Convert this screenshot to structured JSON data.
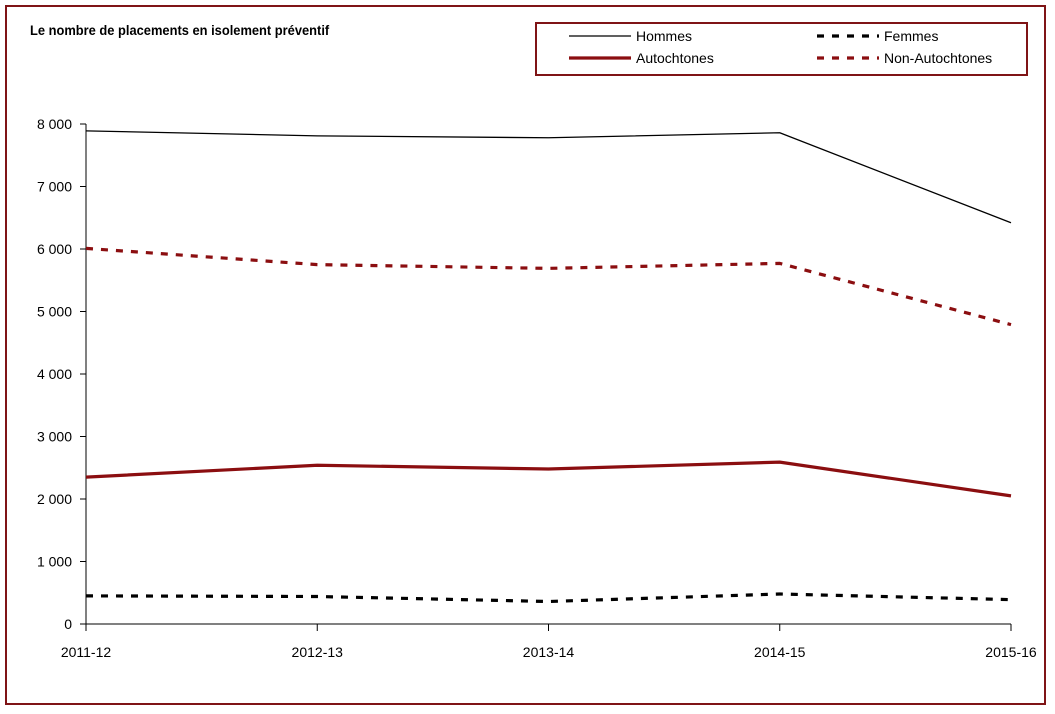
{
  "chart_data": {
    "type": "line",
    "title": "Le nombre de placements en isolement préventif",
    "xlabel": "",
    "ylabel": "",
    "categories": [
      "2011-12",
      "2012-13",
      "2013-14",
      "2014-15",
      "2015-16"
    ],
    "ylim": [
      0,
      8000
    ],
    "yticks": [
      {
        "value": 0,
        "label": "0"
      },
      {
        "value": 1000,
        "label": "1 000"
      },
      {
        "value": 2000,
        "label": "2 000"
      },
      {
        "value": 3000,
        "label": "3 000"
      },
      {
        "value": 4000,
        "label": "4 000"
      },
      {
        "value": 5000,
        "label": "5 000"
      },
      {
        "value": 6000,
        "label": "6 000"
      },
      {
        "value": 7000,
        "label": "7 000"
      },
      {
        "value": 8000,
        "label": "8 000"
      }
    ],
    "grid": false,
    "legend_position": "top-right",
    "series": [
      {
        "name": "Hommes",
        "values": [
          7890,
          7810,
          7780,
          7860,
          6420
        ],
        "color": "#000000",
        "style": "solid",
        "weight": "thin"
      },
      {
        "name": "Femmes",
        "values": [
          450,
          440,
          360,
          480,
          390
        ],
        "color": "#000000",
        "style": "dashed",
        "weight": "thick"
      },
      {
        "name": "Autochtones",
        "values": [
          2350,
          2540,
          2480,
          2590,
          2050
        ],
        "color": "#8b0e10",
        "style": "solid",
        "weight": "thick"
      },
      {
        "name": "Non-Autochtones",
        "values": [
          6010,
          5750,
          5690,
          5770,
          4790
        ],
        "color": "#8b0e10",
        "style": "dashed",
        "weight": "thick"
      }
    ]
  }
}
